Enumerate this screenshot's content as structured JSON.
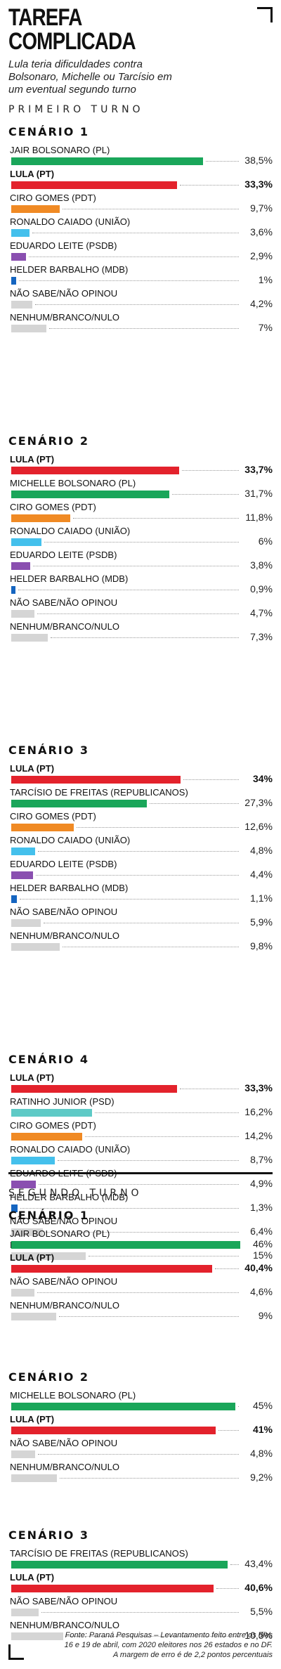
{
  "header": {
    "title": "TAREFA\nCOMPLICADA",
    "subtitle": "Lula teria dificuldades contra Bolsonaro, Michelle ou Tarcísio em um eventual segundo turno"
  },
  "colors": {
    "green": "#1aa65a",
    "red": "#e3222c",
    "orange": "#f08a24",
    "light_blue": "#44c0ec",
    "purple": "#8a4fb0",
    "dark_blue": "#1565c0",
    "teal": "#5ecac6",
    "gray": "#d5d5d5"
  },
  "chart_data": [
    {
      "type": "bar",
      "round": "PRIMEIRO TURNO",
      "title": "CENÁRIO 1",
      "max": 46,
      "categories": [
        "JAIR BOLSONARO (PL)",
        "LULA (PT)",
        "CIRO GOMES (PDT)",
        "RONALDO CAIADO (UNIÃO)",
        "EDUARDO LEITE (PSDB)",
        "HELDER BARBALHO (MDB)",
        "NÃO SABE/NÃO OPINOU",
        "NENHUM/BRANCO/NULO"
      ],
      "values": [
        38.5,
        33.3,
        9.7,
        3.6,
        2.9,
        1,
        4.2,
        7
      ],
      "labels": [
        "38,5%",
        "33,3%",
        "9,7%",
        "3,6%",
        "2,9%",
        "1%",
        "4,2%",
        "7%"
      ],
      "colors": [
        "green",
        "red",
        "orange",
        "light_blue",
        "purple",
        "dark_blue",
        "gray",
        "gray"
      ],
      "bold": [
        false,
        true,
        false,
        false,
        false,
        false,
        false,
        false
      ]
    },
    {
      "type": "bar",
      "title": "CENÁRIO 2",
      "max": 46,
      "categories": [
        "LULA (PT)",
        "MICHELLE BOLSONARO (PL)",
        "CIRO GOMES (PDT)",
        "RONALDO CAIADO (UNIÃO)",
        "EDUARDO LEITE (PSDB)",
        "HELDER BARBALHO (MDB)",
        "NÃO SABE/NÃO OPINOU",
        "NENHUM/BRANCO/NULO"
      ],
      "values": [
        33.7,
        31.7,
        11.8,
        6,
        3.8,
        0.9,
        4.7,
        7.3
      ],
      "labels": [
        "33,7%",
        "31,7%",
        "11,8%",
        "6%",
        "3,8%",
        "0,9%",
        "4,7%",
        "7,3%"
      ],
      "colors": [
        "red",
        "green",
        "orange",
        "light_blue",
        "purple",
        "dark_blue",
        "gray",
        "gray"
      ],
      "bold": [
        true,
        false,
        false,
        false,
        false,
        false,
        false,
        false
      ]
    },
    {
      "type": "bar",
      "title": "CENÁRIO 3",
      "max": 46,
      "categories": [
        "LULA (PT)",
        "TARCÍSIO DE FREITAS (REPUBLICANOS)",
        "CIRO GOMES (PDT)",
        "RONALDO CAIADO (UNIÃO)",
        "EDUARDO LEITE (PSDB)",
        "HELDER BARBALHO (MDB)",
        "NÃO SABE/NÃO OPINOU",
        "NENHUM/BRANCO/NULO"
      ],
      "values": [
        34,
        27.3,
        12.6,
        4.8,
        4.4,
        1.1,
        5.9,
        9.8
      ],
      "labels": [
        "34%",
        "27,3%",
        "12,6%",
        "4,8%",
        "4,4%",
        "1,1%",
        "5,9%",
        "9,8%"
      ],
      "colors": [
        "red",
        "green",
        "orange",
        "light_blue",
        "purple",
        "dark_blue",
        "gray",
        "gray"
      ],
      "bold": [
        true,
        false,
        false,
        false,
        false,
        false,
        false,
        false
      ]
    },
    {
      "type": "bar",
      "title": "CENÁRIO 4",
      "max": 46,
      "categories": [
        "LULA (PT)",
        "RATINHO JUNIOR (PSD)",
        "CIRO GOMES (PDT)",
        "RONALDO CAIADO (UNIÃO)",
        "EDUARDO LEITE (PSDB)",
        "HELDER BARBALHO (MDB)",
        "NÃO SABE/NÃO OPINOU",
        "NENHUM/BRANCO/NULO"
      ],
      "values": [
        33.3,
        16.2,
        14.2,
        8.7,
        4.9,
        1.3,
        6.4,
        15
      ],
      "labels": [
        "33,3%",
        "16,2%",
        "14,2%",
        "8,7%",
        "4,9%",
        "1,3%",
        "6,4%",
        "15%"
      ],
      "colors": [
        "red",
        "teal",
        "orange",
        "light_blue",
        "purple",
        "dark_blue",
        "gray",
        "gray"
      ],
      "bold": [
        true,
        false,
        false,
        false,
        false,
        false,
        false,
        false
      ]
    },
    {
      "type": "bar",
      "round": "SEGUNDO TURNO",
      "title": "CENÁRIO 1",
      "max": 46,
      "categories": [
        "JAIR BOLSONARO (PL)",
        "LULA (PT)",
        "NÃO SABE/NÃO OPINOU",
        "NENHUM/BRANCO/NULO"
      ],
      "values": [
        46,
        40.4,
        4.6,
        9
      ],
      "labels": [
        "46%",
        "40,4%",
        "4,6%",
        "9%"
      ],
      "colors": [
        "green",
        "red",
        "gray",
        "gray"
      ],
      "bold": [
        false,
        true,
        false,
        false
      ]
    },
    {
      "type": "bar",
      "title": "CENÁRIO 2",
      "max": 46,
      "categories": [
        "MICHELLE BOLSONARO (PL)",
        "LULA (PT)",
        "NÃO SABE/NÃO OPINOU",
        "NENHUM/BRANCO/NULO"
      ],
      "values": [
        45,
        41,
        4.8,
        9.2
      ],
      "labels": [
        "45%",
        "41%",
        "4,8%",
        "9,2%"
      ],
      "colors": [
        "green",
        "red",
        "gray",
        "gray"
      ],
      "bold": [
        false,
        true,
        false,
        false
      ]
    },
    {
      "type": "bar",
      "title": "CENÁRIO 3",
      "max": 46,
      "categories": [
        "TARCÍSIO DE FREITAS (REPUBLICANOS)",
        "LULA (PT)",
        "NÃO SABE/NÃO OPINOU",
        "NENHUM/BRANCO/NULO"
      ],
      "values": [
        43.4,
        40.6,
        5.5,
        10.5
      ],
      "labels": [
        "43,4%",
        "40,6%",
        "5,5%",
        "10,5%"
      ],
      "colors": [
        "green",
        "red",
        "gray",
        "gray"
      ],
      "bold": [
        false,
        true,
        false,
        false
      ]
    }
  ],
  "footer": {
    "line1": "Fonte: Paraná Pesquisas – Levantamento feito entre os dias",
    "line2": "16 e 19 de abril, com 2020 eleitores nos 26 estados e no DF.",
    "line3": "A margem de erro é de 2,2 pontos percentuais"
  }
}
